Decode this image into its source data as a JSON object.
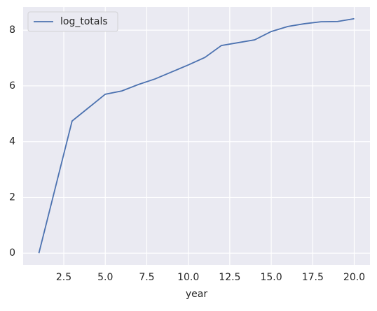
{
  "chart_data": {
    "type": "line",
    "xlabel": "year",
    "x": [
      1,
      2,
      3,
      4,
      5,
      6,
      7,
      8,
      9,
      10,
      11,
      12,
      13,
      14,
      15,
      16,
      17,
      18,
      19,
      20
    ],
    "series": [
      {
        "name": "log_totals",
        "color": "#4c72b0",
        "values": [
          0,
          2.37,
          4.74,
          5.22,
          5.7,
          5.82,
          6.05,
          6.25,
          6.5,
          6.75,
          7.02,
          7.45,
          7.55,
          7.65,
          7.95,
          8.13,
          8.23,
          8.3,
          8.31,
          8.41
        ]
      }
    ],
    "xlim": [
      0.05,
      20.95
    ],
    "ylim": [
      -0.42,
      8.83
    ],
    "xticks": [
      {
        "value": 2.5,
        "label": "2.5"
      },
      {
        "value": 5,
        "label": "5.0"
      },
      {
        "value": 7.5,
        "label": "7.5"
      },
      {
        "value": 10,
        "label": "10.0"
      },
      {
        "value": 12.5,
        "label": "12.5"
      },
      {
        "value": 15,
        "label": "15.0"
      },
      {
        "value": 17.5,
        "label": "17.5"
      },
      {
        "value": 20,
        "label": "20.0"
      }
    ],
    "yticks": [
      0,
      2,
      4,
      6,
      8
    ],
    "grid": true,
    "legend": "upper left"
  }
}
